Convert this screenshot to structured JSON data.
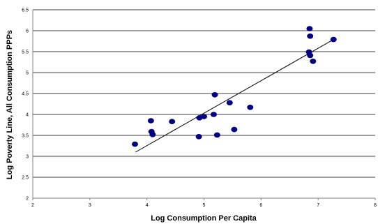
{
  "chart_data": {
    "type": "scatter",
    "title": "",
    "xlabel": "Log Consumption Per Capita",
    "ylabel": "Log Poverty Line, All Consumption PPPs",
    "xlim": [
      2,
      8
    ],
    "ylim": [
      2,
      6.5
    ],
    "x_ticks": [
      "2",
      "3",
      "4",
      "5",
      "6",
      "7",
      "8"
    ],
    "y_ticks": [
      "2",
      "2.5",
      "3",
      "3.5",
      "4",
      "4.5",
      "5",
      "5.5",
      "6",
      "6.5"
    ],
    "grid": "horizontal",
    "legend": "none",
    "colors": {
      "points": "#000080",
      "trendline": "#000000",
      "grid": "#000000",
      "axes": "#808080"
    },
    "points": [
      {
        "x": 3.79,
        "y": 3.29
      },
      {
        "x": 4.07,
        "y": 3.85
      },
      {
        "x": 4.08,
        "y": 3.59
      },
      {
        "x": 4.1,
        "y": 3.52
      },
      {
        "x": 4.44,
        "y": 3.83
      },
      {
        "x": 4.92,
        "y": 3.92
      },
      {
        "x": 4.91,
        "y": 3.47
      },
      {
        "x": 5.0,
        "y": 3.95
      },
      {
        "x": 5.17,
        "y": 4.0
      },
      {
        "x": 5.19,
        "y": 4.47
      },
      {
        "x": 5.23,
        "y": 3.51
      },
      {
        "x": 5.45,
        "y": 4.28
      },
      {
        "x": 5.53,
        "y": 3.64
      },
      {
        "x": 5.81,
        "y": 4.17
      },
      {
        "x": 6.85,
        "y": 6.05
      },
      {
        "x": 6.86,
        "y": 5.87
      },
      {
        "x": 6.84,
        "y": 5.49
      },
      {
        "x": 6.86,
        "y": 5.41
      },
      {
        "x": 6.91,
        "y": 5.27
      },
      {
        "x": 7.27,
        "y": 5.79
      }
    ],
    "trendline": {
      "x": [
        3.8,
        7.27
      ],
      "y": [
        3.1,
        5.79
      ]
    }
  }
}
